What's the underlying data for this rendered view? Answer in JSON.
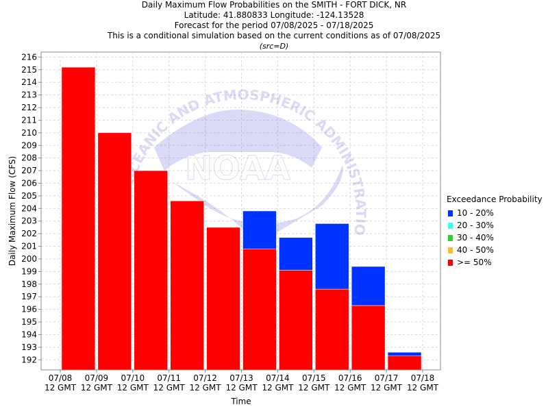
{
  "titles": {
    "line1": "Daily Maximum Flow Probabilities on the SMITH - FORT DICK, NR",
    "line2": "Latitude: 41.880833 Longitude: -124.13528",
    "line3": "Forecast for the period 07/08/2025 - 07/18/2025",
    "line4": "This is a conditional simulation based on the current conditions as of 07/08/2025",
    "line5": "(src=D)"
  },
  "watermark": {
    "arc_text": "OCEANIC AND ATMOSPHERIC ADMINISTRATION",
    "logo_text": "NOAA"
  },
  "legend": {
    "title": "Exceedance Probability",
    "items": [
      {
        "label": "10 - 20%",
        "color": "#0033ff"
      },
      {
        "label": "20 - 30%",
        "color": "#33ffff"
      },
      {
        "label": "30 - 40%",
        "color": "#33cc33"
      },
      {
        "label": "40 - 50%",
        "color": "#ffbb33"
      },
      {
        "label": ">= 50%",
        "color": "#ff0000"
      }
    ]
  },
  "chart_data": {
    "type": "bar",
    "title": "Daily Maximum Flow Probabilities on the SMITH - FORT DICK, NR",
    "xlabel": "Time",
    "ylabel": "Daily Maximum Flow (CFS)",
    "ylim": [
      191.2,
      216.4
    ],
    "yticks": [
      192,
      193,
      194,
      195,
      196,
      197,
      198,
      199,
      200,
      201,
      202,
      203,
      204,
      205,
      206,
      207,
      208,
      209,
      210,
      211,
      212,
      213,
      214,
      215,
      216
    ],
    "xticks": [
      {
        "date": "07/08",
        "time": "12 GMT"
      },
      {
        "date": "07/09",
        "time": "12 GMT"
      },
      {
        "date": "07/10",
        "time": "12 GMT"
      },
      {
        "date": "07/11",
        "time": "12 GMT"
      },
      {
        "date": "07/12",
        "time": "12 GMT"
      },
      {
        "date": "07/13",
        "time": "12 GMT"
      },
      {
        "date": "07/14",
        "time": "12 GMT"
      },
      {
        "date": "07/15",
        "time": "12 GMT"
      },
      {
        "date": "07/16",
        "time": "12 GMT"
      },
      {
        "date": "07/17",
        "time": "12 GMT"
      },
      {
        "date": "07/18",
        "time": "12 GMT"
      }
    ],
    "grid": true,
    "legend_position": "right",
    "bars": [
      {
        "start": "07/08",
        "ge50": 215.2,
        "p10_20": null
      },
      {
        "start": "07/09",
        "ge50": 210.0,
        "p10_20": null
      },
      {
        "start": "07/10",
        "ge50": 207.0,
        "p10_20": null
      },
      {
        "start": "07/11",
        "ge50": 204.6,
        "p10_20": null
      },
      {
        "start": "07/12",
        "ge50": 202.5,
        "p10_20": null
      },
      {
        "start": "07/13",
        "ge50": 200.8,
        "p10_20": 203.8
      },
      {
        "start": "07/14",
        "ge50": 199.1,
        "p10_20": 201.7
      },
      {
        "start": "07/15",
        "ge50": 197.6,
        "p10_20": 202.8
      },
      {
        "start": "07/16",
        "ge50": 196.3,
        "p10_20": 199.4
      },
      {
        "start": "07/17",
        "ge50": 192.3,
        "p10_20": 192.6
      }
    ],
    "colors": {
      "ge50": "#ff0000",
      "p10_20": "#0033ff"
    }
  }
}
